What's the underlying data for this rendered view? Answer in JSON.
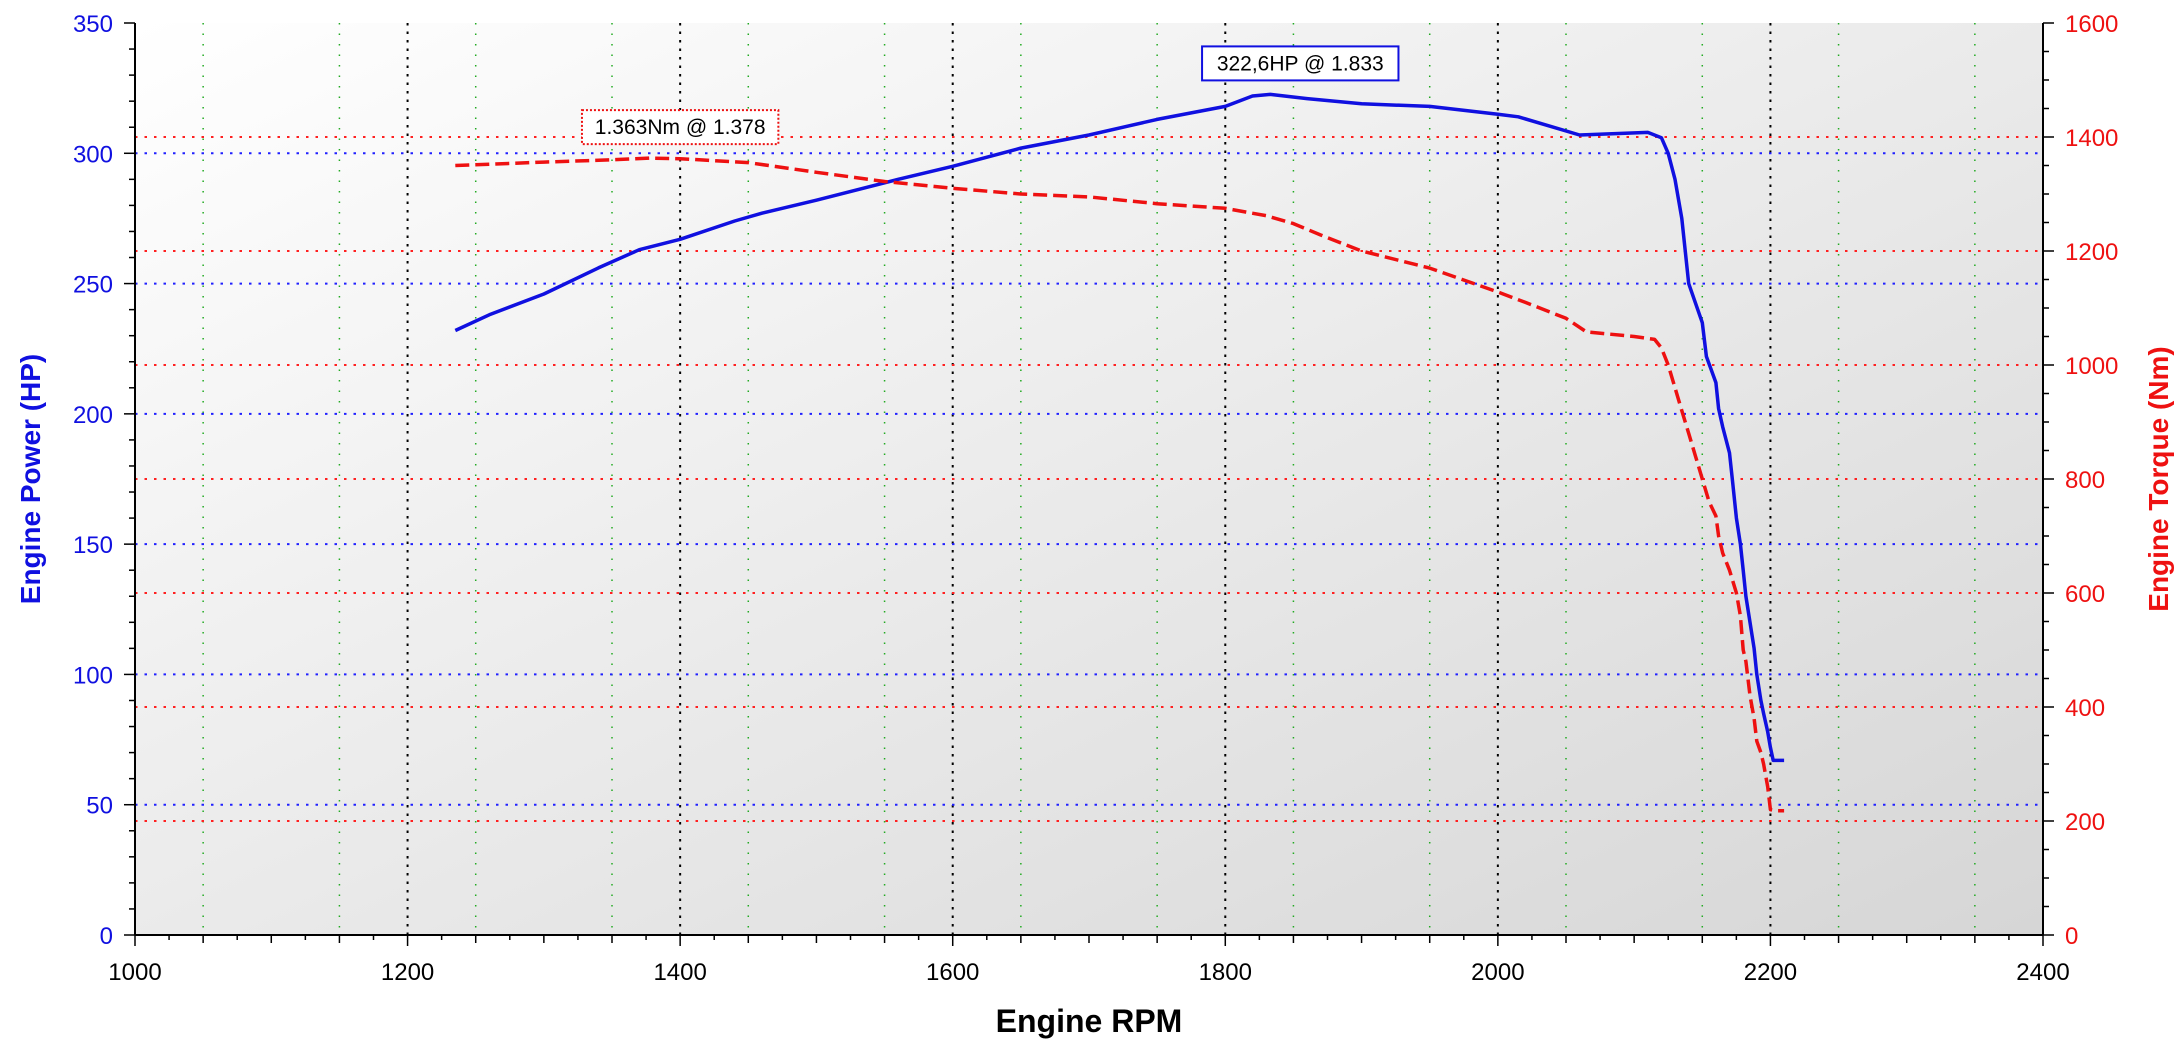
{
  "chart_data": {
    "type": "line",
    "title": "",
    "xlabel": "Engine RPM",
    "ylabel": "Engine Power (HP)",
    "y2label": "Engine Torque (Nm)",
    "xlim": [
      1000,
      2400
    ],
    "ylim": [
      0,
      350
    ],
    "y2lim": [
      0,
      1600
    ],
    "x_ticks": [
      1000,
      1200,
      1400,
      1600,
      1800,
      2000,
      2200,
      2400
    ],
    "y_ticks": [
      0,
      50,
      100,
      150,
      200,
      250,
      300,
      350
    ],
    "y2_ticks": [
      0,
      200,
      400,
      600,
      800,
      1000,
      1200,
      1400,
      1600
    ],
    "grid": true,
    "series": [
      {
        "name": "Engine Power (HP)",
        "axis": "left",
        "color": "#1010e0",
        "style": "solid",
        "x": [
          1235,
          1260,
          1300,
          1340,
          1370,
          1400,
          1440,
          1460,
          1500,
          1560,
          1600,
          1650,
          1700,
          1750,
          1800,
          1820,
          1833,
          1860,
          1900,
          1950,
          2000,
          2015,
          2060,
          2110,
          2120,
          2125,
          2130,
          2135,
          2140,
          2150,
          2153,
          2160,
          2162,
          2165,
          2170,
          2172,
          2175,
          2178,
          2180,
          2182,
          2185,
          2188,
          2190,
          2193,
          2195,
          2198,
          2200,
          2202,
          2205,
          2210
        ],
        "values": [
          232,
          238,
          246,
          256,
          263,
          267,
          274,
          277,
          282,
          290,
          295,
          302,
          307,
          313,
          318,
          322,
          322.6,
          321,
          319,
          318,
          315,
          314,
          307,
          308,
          306,
          300,
          290,
          275,
          250,
          235,
          222,
          212,
          202,
          195,
          185,
          175,
          160,
          150,
          140,
          130,
          120,
          110,
          100,
          90,
          85,
          78,
          72,
          67,
          67,
          67
        ]
      },
      {
        "name": "Engine Torque (Nm)",
        "axis": "right",
        "color": "#ee1111",
        "style": "dashed",
        "x": [
          1235,
          1300,
          1350,
          1378,
          1400,
          1450,
          1500,
          1550,
          1600,
          1650,
          1700,
          1750,
          1800,
          1830,
          1850,
          1870,
          1900,
          1950,
          2000,
          2020,
          2050,
          2065,
          2100,
          2115,
          2120,
          2125,
          2130,
          2135,
          2140,
          2145,
          2150,
          2155,
          2160,
          2162,
          2165,
          2170,
          2175,
          2178,
          2180,
          2182,
          2185,
          2188,
          2190,
          2193,
          2195,
          2198,
          2200,
          2205,
          2210
        ],
        "values": [
          1350,
          1356,
          1360,
          1363,
          1362,
          1355,
          1338,
          1322,
          1310,
          1300,
          1295,
          1283,
          1275,
          1262,
          1248,
          1228,
          1200,
          1170,
          1128,
          1110,
          1082,
          1058,
          1050,
          1045,
          1030,
          1000,
          960,
          920,
          880,
          840,
          800,
          760,
          735,
          700,
          670,
          640,
          600,
          560,
          500,
          480,
          420,
          380,
          340,
          320,
          300,
          260,
          220,
          218,
          218
        ]
      }
    ],
    "annotations": [
      {
        "text": "322,6HP @ 1.833",
        "x": 1833,
        "y": 322.6,
        "axis": "left",
        "color": "#1010e0"
      },
      {
        "text": "1.363Nm @ 1.378",
        "x": 1378,
        "y": 1363,
        "axis": "right",
        "color": "#ee1111"
      }
    ],
    "colors": {
      "left_axis": "#1010e0",
      "right_axis": "#ee1111",
      "left_grid": "#2020ff",
      "right_grid": "#ff2020",
      "x_grid": "#000000",
      "minor_grid": "#22aa22"
    }
  }
}
